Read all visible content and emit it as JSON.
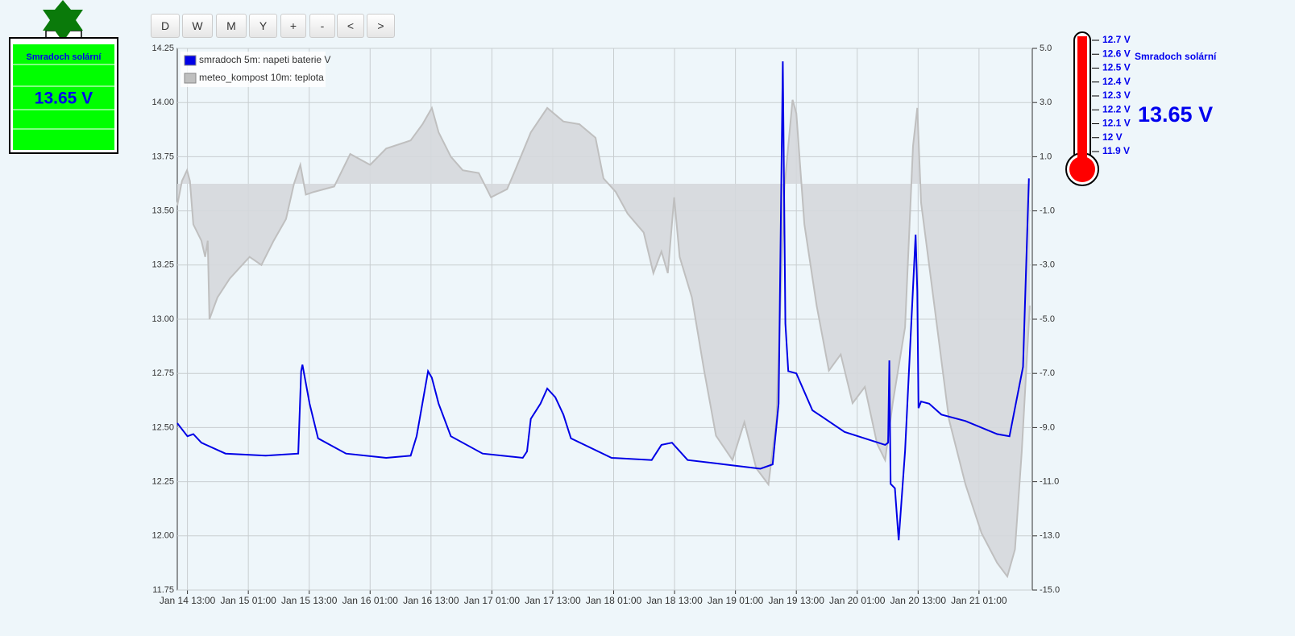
{
  "toolbar": {
    "buttons": [
      "D",
      "W",
      "M",
      "Y",
      "+",
      "-",
      "<",
      ">"
    ]
  },
  "widget": {
    "title": "Smradoch solární",
    "value": "13.65 V"
  },
  "gauge": {
    "scale": [
      "12.7 V",
      "12.6 V",
      "12.5 V",
      "12.4 V",
      "12.3 V",
      "12.2 V",
      "12.1 V",
      "12 V",
      "11.9 V"
    ],
    "title": "Smradoch solární",
    "value": "13.65 V"
  },
  "chart_data": {
    "type": "line",
    "grid": true,
    "legend": "upper left",
    "xlim": [
      "Jan 14 11:00",
      "Jan 21 11:30"
    ],
    "xticks": [
      "Jan 14 13:00",
      "Jan 15 01:00",
      "Jan 15 13:00",
      "Jan 16 01:00",
      "Jan 16 13:00",
      "Jan 17 01:00",
      "Jan 17 13:00",
      "Jan 18 01:00",
      "Jan 18 13:00",
      "Jan 19 01:00",
      "Jan 19 13:00",
      "Jan 20 01:00",
      "Jan 20 13:00",
      "Jan 21 01:00"
    ],
    "ylim": [
      11.75,
      14.25
    ],
    "yticks": [
      11.75,
      {
        "value": 12,
        "label": "12.00"
      },
      12.25,
      {
        "value": 12.5,
        "label": "12.50"
      },
      12.75,
      {
        "value": 13,
        "label": "13.00"
      },
      13.25,
      {
        "value": 13.5,
        "label": "13.50"
      },
      13.75,
      {
        "value": 14,
        "label": "14.00"
      },
      14.25
    ],
    "y2lim": [
      -15,
      5
    ],
    "y2ticks": [
      {
        "value": -15,
        "label": "-15.0"
      },
      {
        "value": -13,
        "label": "-13.0"
      },
      {
        "value": -11,
        "label": "-11.0"
      },
      {
        "value": -9,
        "label": "-9.0"
      },
      {
        "value": -7,
        "label": "-7.0"
      },
      {
        "value": -5,
        "label": "-5.0"
      },
      {
        "value": -3,
        "label": "-3.0"
      },
      {
        "value": -1,
        "label": "-1.0"
      },
      {
        "value": 1,
        "label": "1.0"
      },
      {
        "value": 3,
        "label": "3.0"
      },
      {
        "value": 5,
        "label": "5.0"
      }
    ],
    "series": [
      {
        "name": "smradoch 5m: napeti baterie V",
        "color": "#0000e6",
        "axis": "y",
        "x": [
          "Jan 14 11:00",
          "Jan 14 13:00",
          "Jan 14 14:10",
          "Jan 14 15:45",
          "Jan 14 20:30",
          "Jan 15 04:25",
          "Jan 15 10:50",
          "Jan 15 11:25",
          "Jan 15 11:40",
          "Jan 15 13:05",
          "Jan 15 14:45",
          "Jan 15 20:15",
          "Jan 16 04:10",
          "Jan 16 09:00",
          "Jan 16 10:10",
          "Jan 16 12:25",
          "Jan 16 13:10",
          "Jan 16 14:30",
          "Jan 16 16:55",
          "Jan 16 23:10",
          "Jan 17 07:05",
          "Jan 17 07:55",
          "Jan 17 08:40",
          "Jan 17 10:35",
          "Jan 17 11:55",
          "Jan 17 13:30",
          "Jan 17 15:05",
          "Jan 17 16:35",
          "Jan 18 00:35",
          "Jan 18 08:30",
          "Jan 18 10:25",
          "Jan 18 12:30",
          "Jan 18 15:35",
          "Jan 18 22:50",
          "Jan 19 05:55",
          "Jan 19 08:20",
          "Jan 19 09:30",
          "Jan 19 10:20",
          "Jan 19 10:50",
          "Jan 19 11:25",
          "Jan 19 13:00",
          "Jan 19 16:10",
          "Jan 19 22:30",
          "Jan 20 06:30",
          "Jan 20 07:05",
          "Jan 20 07:20",
          "Jan 20 07:35",
          "Jan 20 08:25",
          "Jan 20 09:10",
          "Jan 20 10:25",
          "Jan 20 12:30",
          "Jan 20 12:50",
          "Jan 20 13:05",
          "Jan 20 13:35",
          "Jan 20 15:10",
          "Jan 20 17:35",
          "Jan 20 22:20",
          "Jan 21 04:35",
          "Jan 21 07:00",
          "Jan 21 08:05",
          "Jan 21 09:40",
          "Jan 21 10:50"
        ],
        "values": [
          12.52,
          12.46,
          12.47,
          12.43,
          12.38,
          12.37,
          12.38,
          12.76,
          12.79,
          12.61,
          12.45,
          12.38,
          12.36,
          12.37,
          12.46,
          12.76,
          12.73,
          12.61,
          12.46,
          12.38,
          12.36,
          12.39,
          12.54,
          12.61,
          12.68,
          12.64,
          12.56,
          12.45,
          12.36,
          12.35,
          12.42,
          12.43,
          12.35,
          12.33,
          12.31,
          12.33,
          12.61,
          14.19,
          12.98,
          12.76,
          12.75,
          12.58,
          12.48,
          12.42,
          12.43,
          12.81,
          12.24,
          12.22,
          11.98,
          12.39,
          13.39,
          13.13,
          12.59,
          12.62,
          12.61,
          12.56,
          12.53,
          12.47,
          12.46,
          12.59,
          12.78,
          13.65
        ]
      },
      {
        "name": "meteo_kompost 10m: teplota",
        "color": "#bfbfbf",
        "axis": "y2",
        "x": [
          "Jan 14 11:00",
          "Jan 14 11:55",
          "Jan 14 12:55",
          "Jan 14 13:30",
          "Jan 14 14:10",
          "Jan 14 15:45",
          "Jan 14 16:30",
          "Jan 14 17:00",
          "Jan 14 17:20",
          "Jan 14 18:55",
          "Jan 14 21:20",
          "Jan 15 01:15",
          "Jan 15 03:35",
          "Jan 15 06:00",
          "Jan 15 08:25",
          "Jan 15 10:00",
          "Jan 15 11:15",
          "Jan 15 12:20",
          "Jan 15 13:55",
          "Jan 15 17:55",
          "Jan 15 21:05",
          "Jan 16 01:00",
          "Jan 16 04:10",
          "Jan 16 09:00",
          "Jan 16 11:20",
          "Jan 16 13:10",
          "Jan 16 14:30",
          "Jan 16 16:55",
          "Jan 16 19:15",
          "Jan 16 22:25",
          "Jan 17 00:50",
          "Jan 17 04:00",
          "Jan 17 05:35",
          "Jan 17 08:40",
          "Jan 17 11:55",
          "Jan 17 15:05",
          "Jan 17 18:15",
          "Jan 17 21:25",
          "Jan 17 23:00",
          "Jan 18 01:25",
          "Jan 18 03:45",
          "Jan 18 06:55",
          "Jan 18 08:50",
          "Jan 18 10:25",
          "Jan 18 11:40",
          "Jan 18 12:55",
          "Jan 18 14:00",
          "Jan 18 16:25",
          "Jan 18 18:50",
          "Jan 18 21:10",
          "Jan 19 00:25",
          "Jan 19 02:45",
          "Jan 19 05:05",
          "Jan 19 07:30",
          "Jan 19 09:05",
          "Jan 19 10:40",
          "Jan 19 12:15",
          "Jan 19 13:00",
          "Jan 19 14:35",
          "Jan 19 17:00",
          "Jan 19 19:25",
          "Jan 19 21:45",
          "Jan 20 00:05",
          "Jan 20 02:30",
          "Jan 20 04:55",
          "Jan 20 06:30",
          "Jan 20 08:00",
          "Jan 20 10:25",
          "Jan 20 12:00",
          "Jan 20 12:50",
          "Jan 20 13:35",
          "Jan 20 16:00",
          "Jan 20 19:05",
          "Jan 20 22:20",
          "Jan 21 01:30",
          "Jan 21 04:35",
          "Jan 21 06:35",
          "Jan 21 08:05",
          "Jan 21 09:25",
          "Jan 21 11:00"
        ],
        "values": [
          -0.8,
          0.1,
          0.5,
          0.1,
          -1.5,
          -2.1,
          -2.7,
          -2.1,
          -5.0,
          -4.2,
          -3.5,
          -2.7,
          -3.0,
          -2.1,
          -1.3,
          0.0,
          0.7,
          -0.4,
          -0.3,
          -0.1,
          1.1,
          0.7,
          1.3,
          1.6,
          2.2,
          2.8,
          1.9,
          1.0,
          0.5,
          0.4,
          -0.5,
          -0.2,
          0.5,
          1.9,
          2.8,
          2.3,
          2.2,
          1.7,
          0.2,
          -0.3,
          -1.1,
          -1.8,
          -3.3,
          -2.5,
          -3.3,
          -0.5,
          -2.7,
          -4.2,
          -6.9,
          -9.3,
          -10.2,
          -8.8,
          -10.5,
          -11.1,
          -8.7,
          -0.1,
          3.1,
          2.6,
          -1.5,
          -4.5,
          -6.9,
          -6.3,
          -8.1,
          -7.5,
          -9.6,
          -10.2,
          -8.1,
          -5.3,
          1.4,
          2.8,
          -0.7,
          -4.2,
          -8.7,
          -11.1,
          -12.9,
          -14.0,
          -14.5,
          -13.5,
          -9.9,
          -4.5
        ]
      }
    ]
  }
}
